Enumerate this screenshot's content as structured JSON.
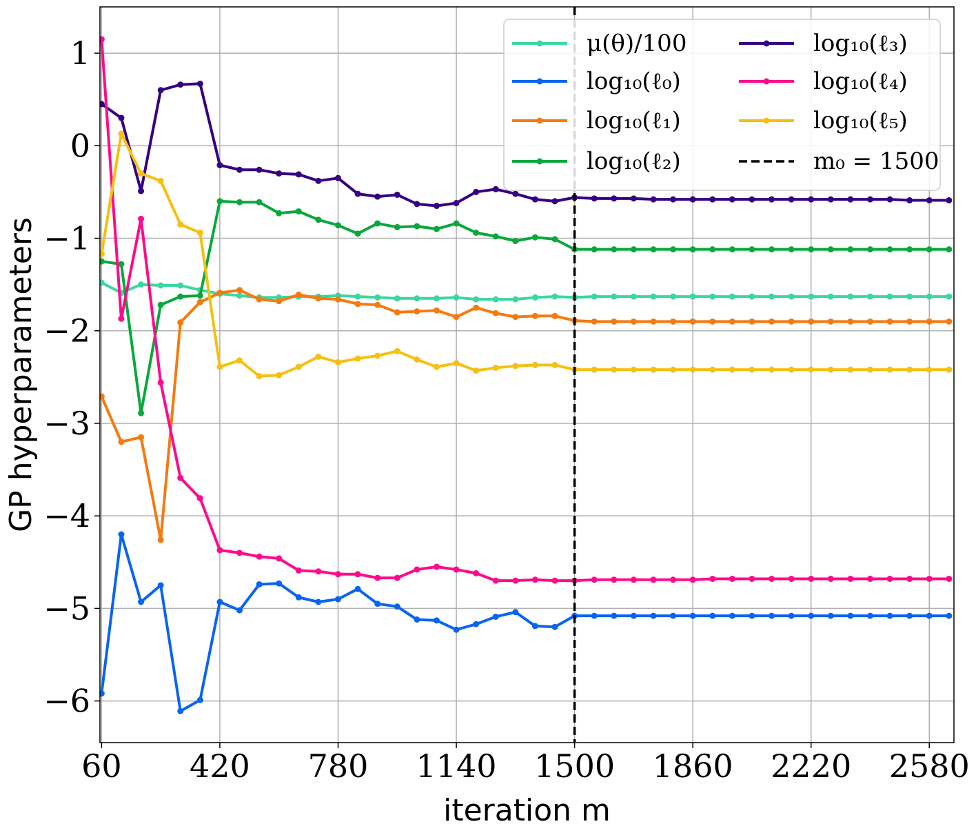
{
  "chart_data": {
    "type": "line",
    "xlabel": "iteration m",
    "ylabel": "GP hyperparameters",
    "xlim": [
      55,
      2655
    ],
    "ylim": [
      -6.45,
      1.5
    ],
    "xticks": [
      60,
      420,
      780,
      1140,
      1500,
      1860,
      2220,
      2580
    ],
    "yticks": [
      1,
      0,
      -1,
      -2,
      -3,
      -4,
      -5,
      -6
    ],
    "ytick_labels": [
      "1",
      "0",
      "−1",
      "−2",
      "−3",
      "−4",
      "−5",
      "−6"
    ],
    "grid": true,
    "legend_position": "top-right",
    "x": [
      60,
      120,
      180,
      240,
      300,
      360,
      420,
      480,
      540,
      600,
      660,
      720,
      780,
      840,
      900,
      960,
      1020,
      1080,
      1140,
      1200,
      1260,
      1320,
      1380,
      1440,
      1500,
      1560,
      1620,
      1680,
      1740,
      1800,
      1860,
      1920,
      1980,
      2040,
      2100,
      2160,
      2220,
      2280,
      2340,
      2400,
      2460,
      2520,
      2580,
      2640
    ],
    "series": [
      {
        "name": "μ(θ)/100",
        "color": "#3dd6a0",
        "values": [
          -1.48,
          -1.59,
          -1.5,
          -1.51,
          -1.51,
          -1.56,
          -1.6,
          -1.62,
          -1.64,
          -1.64,
          -1.63,
          -1.63,
          -1.62,
          -1.63,
          -1.64,
          -1.65,
          -1.65,
          -1.65,
          -1.64,
          -1.66,
          -1.66,
          -1.66,
          -1.64,
          -1.63,
          -1.64,
          -1.63,
          -1.63,
          -1.63,
          -1.63,
          -1.63,
          -1.63,
          -1.63,
          -1.63,
          -1.63,
          -1.63,
          -1.63,
          -1.63,
          -1.63,
          -1.63,
          -1.63,
          -1.63,
          -1.63,
          -1.63,
          -1.63
        ]
      },
      {
        "name": "log₁₀(ℓ₀)",
        "color": "#0a64f0",
        "values": [
          -5.92,
          -4.2,
          -4.93,
          -4.75,
          -6.11,
          -5.99,
          -4.93,
          -5.02,
          -4.74,
          -4.73,
          -4.88,
          -4.93,
          -4.9,
          -4.79,
          -4.95,
          -4.98,
          -5.12,
          -5.13,
          -5.23,
          -5.17,
          -5.09,
          -5.04,
          -5.19,
          -5.2,
          -5.08,
          -5.08,
          -5.08,
          -5.08,
          -5.08,
          -5.08,
          -5.08,
          -5.08,
          -5.08,
          -5.08,
          -5.08,
          -5.08,
          -5.08,
          -5.08,
          -5.08,
          -5.08,
          -5.08,
          -5.08,
          -5.08,
          -5.08
        ]
      },
      {
        "name": "log₁₀(ℓ₁)",
        "color": "#f57a10",
        "values": [
          -2.71,
          -3.2,
          -3.15,
          -4.26,
          -1.91,
          -1.69,
          -1.59,
          -1.56,
          -1.66,
          -1.68,
          -1.61,
          -1.65,
          -1.66,
          -1.71,
          -1.72,
          -1.8,
          -1.79,
          -1.78,
          -1.85,
          -1.75,
          -1.81,
          -1.85,
          -1.84,
          -1.84,
          -1.89,
          -1.9,
          -1.9,
          -1.9,
          -1.9,
          -1.9,
          -1.9,
          -1.9,
          -1.9,
          -1.9,
          -1.9,
          -1.9,
          -1.9,
          -1.9,
          -1.9,
          -1.9,
          -1.9,
          -1.9,
          -1.9,
          -1.9
        ]
      },
      {
        "name": "log₁₀(ℓ₂)",
        "color": "#0aa83c",
        "values": [
          -1.25,
          -1.28,
          -2.89,
          -1.72,
          -1.63,
          -1.62,
          -0.6,
          -0.61,
          -0.61,
          -0.73,
          -0.71,
          -0.8,
          -0.86,
          -0.95,
          -0.84,
          -0.88,
          -0.87,
          -0.9,
          -0.84,
          -0.94,
          -0.98,
          -1.03,
          -0.99,
          -1.01,
          -1.12,
          -1.12,
          -1.12,
          -1.12,
          -1.12,
          -1.12,
          -1.12,
          -1.12,
          -1.12,
          -1.12,
          -1.12,
          -1.12,
          -1.12,
          -1.12,
          -1.12,
          -1.12,
          -1.12,
          -1.12,
          -1.12,
          -1.12
        ]
      },
      {
        "name": "log₁₀(ℓ₃)",
        "color": "#360080",
        "values": [
          0.45,
          0.3,
          -0.49,
          0.6,
          0.66,
          0.67,
          -0.21,
          -0.26,
          -0.26,
          -0.3,
          -0.31,
          -0.38,
          -0.35,
          -0.52,
          -0.55,
          -0.53,
          -0.63,
          -0.65,
          -0.62,
          -0.5,
          -0.47,
          -0.52,
          -0.58,
          -0.6,
          -0.56,
          -0.57,
          -0.57,
          -0.57,
          -0.58,
          -0.58,
          -0.58,
          -0.58,
          -0.58,
          -0.58,
          -0.58,
          -0.58,
          -0.58,
          -0.58,
          -0.58,
          -0.58,
          -0.58,
          -0.59,
          -0.59,
          -0.59
        ]
      },
      {
        "name": "log₁₀(ℓ₄)",
        "color": "#ff0a8c",
        "values": [
          1.15,
          -1.87,
          -0.79,
          -2.56,
          -3.59,
          -3.81,
          -4.37,
          -4.4,
          -4.44,
          -4.46,
          -4.59,
          -4.6,
          -4.63,
          -4.63,
          -4.67,
          -4.67,
          -4.58,
          -4.55,
          -4.58,
          -4.62,
          -4.7,
          -4.7,
          -4.69,
          -4.7,
          -4.7,
          -4.69,
          -4.69,
          -4.69,
          -4.69,
          -4.69,
          -4.69,
          -4.68,
          -4.68,
          -4.68,
          -4.68,
          -4.68,
          -4.68,
          -4.68,
          -4.68,
          -4.68,
          -4.68,
          -4.68,
          -4.68,
          -4.68
        ]
      },
      {
        "name": "log₁₀(ℓ₅)",
        "color": "#f5c010",
        "values": [
          -1.17,
          0.13,
          -0.3,
          -0.38,
          -0.85,
          -0.94,
          -2.39,
          -2.32,
          -2.49,
          -2.48,
          -2.39,
          -2.28,
          -2.34,
          -2.3,
          -2.27,
          -2.22,
          -2.31,
          -2.39,
          -2.35,
          -2.43,
          -2.4,
          -2.38,
          -2.37,
          -2.37,
          -2.42,
          -2.42,
          -2.42,
          -2.42,
          -2.42,
          -2.42,
          -2.42,
          -2.42,
          -2.42,
          -2.42,
          -2.42,
          -2.42,
          -2.42,
          -2.42,
          -2.42,
          -2.42,
          -2.42,
          -2.42,
          -2.42,
          -2.42
        ]
      }
    ],
    "vline": {
      "x": 1500,
      "label": "m₀ = 1500",
      "color": "#000000",
      "style": "dashed"
    }
  }
}
